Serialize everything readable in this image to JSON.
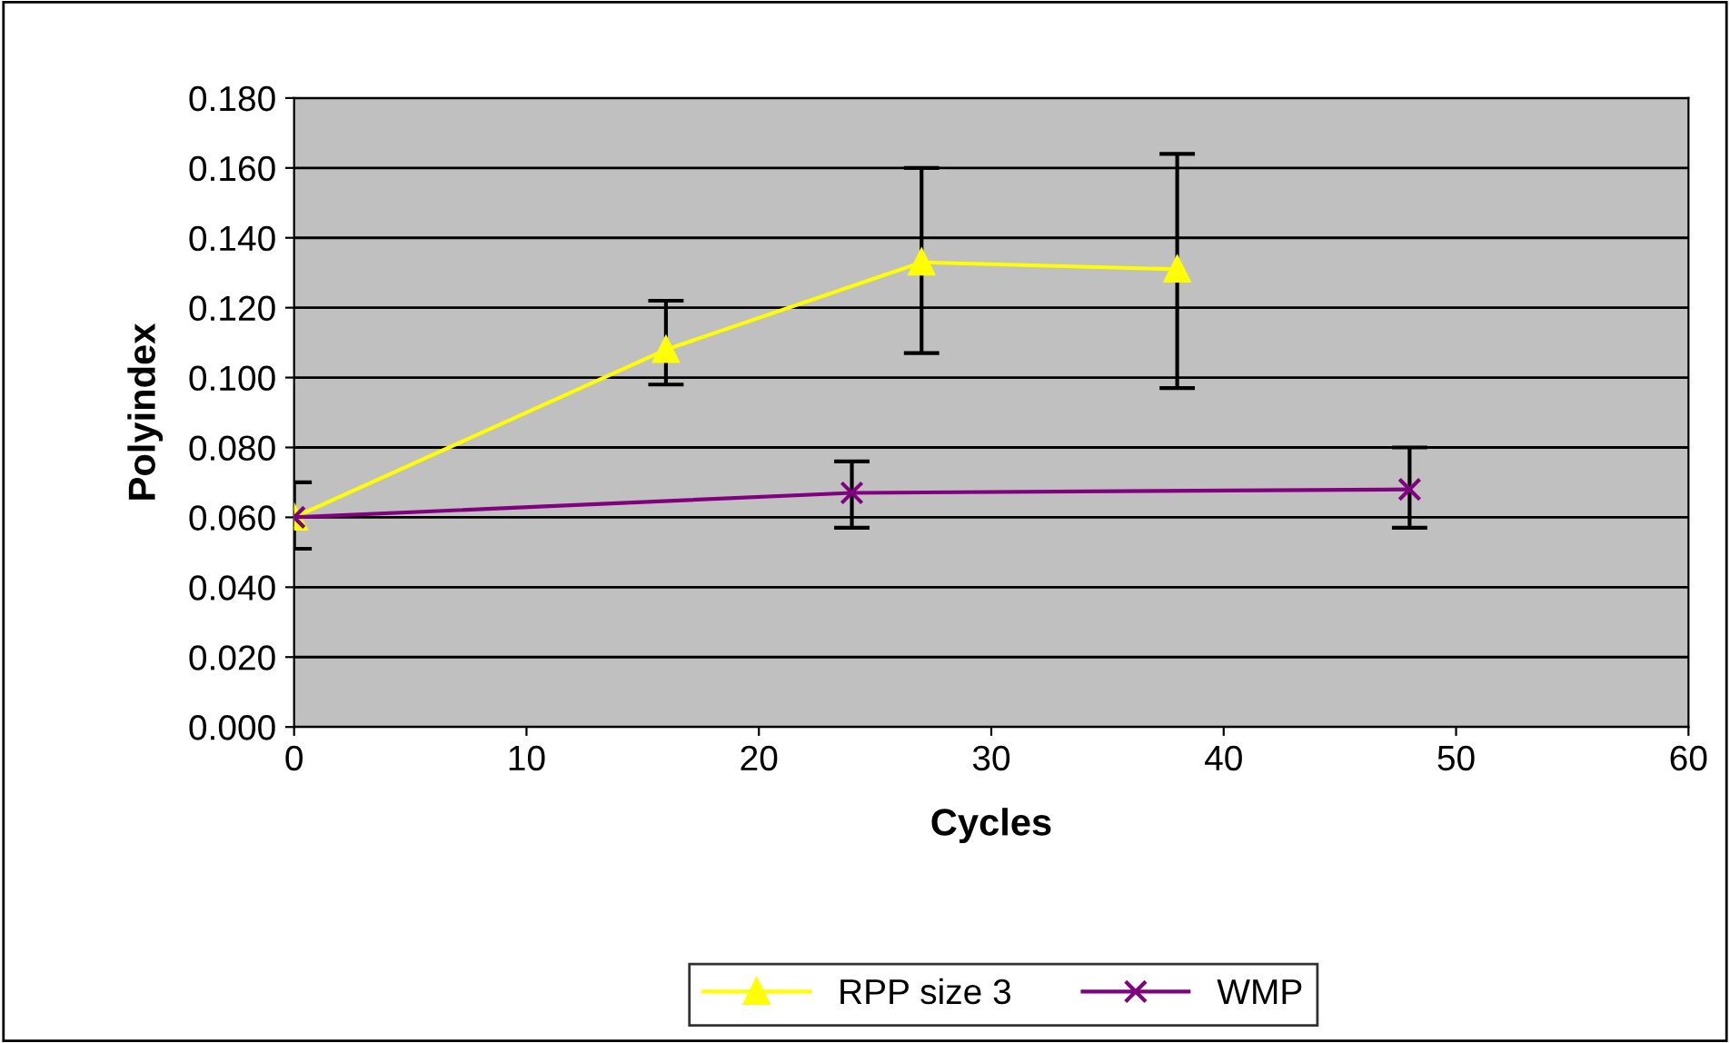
{
  "chart_data": {
    "type": "line",
    "xlabel": "Cycles",
    "ylabel": "Polyindex",
    "xlim": [
      0,
      60
    ],
    "xticks": [
      0,
      10,
      20,
      30,
      40,
      50,
      60
    ],
    "ylim": [
      0,
      0.18
    ],
    "yticks": [
      {
        "value": 0,
        "label": "0.000"
      },
      {
        "value": 0.02,
        "label": "0.020"
      },
      {
        "value": 0.04,
        "label": "0.040"
      },
      {
        "value": 0.06,
        "label": "0.060"
      },
      {
        "value": 0.08,
        "label": "0.080"
      },
      {
        "value": 0.1,
        "label": "0.100"
      },
      {
        "value": 0.12,
        "label": "0.120"
      },
      {
        "value": 0.14,
        "label": "0.140"
      },
      {
        "value": 0.16,
        "label": "0.160"
      },
      {
        "value": 0.18,
        "label": "0.180"
      }
    ],
    "grid": "y",
    "legend": "bottom",
    "series": [
      {
        "name": "RPP size 3",
        "color": "#ffff00",
        "marker": "triangle",
        "x": [
          0,
          16,
          27,
          38
        ],
        "values": [
          0.06,
          0.108,
          0.133,
          0.131
        ],
        "errors": [
          null,
          [
            0.098,
            0.122
          ],
          [
            0.107,
            0.16
          ],
          [
            0.097,
            0.164
          ]
        ]
      },
      {
        "name": "WMP",
        "color": "#800080",
        "marker": "cross",
        "x": [
          0,
          24,
          48
        ],
        "values": [
          0.06,
          0.067,
          0.068
        ],
        "errors": [
          [
            0.051,
            0.07
          ],
          [
            0.057,
            0.076
          ],
          [
            0.057,
            0.08
          ]
        ]
      }
    ]
  }
}
